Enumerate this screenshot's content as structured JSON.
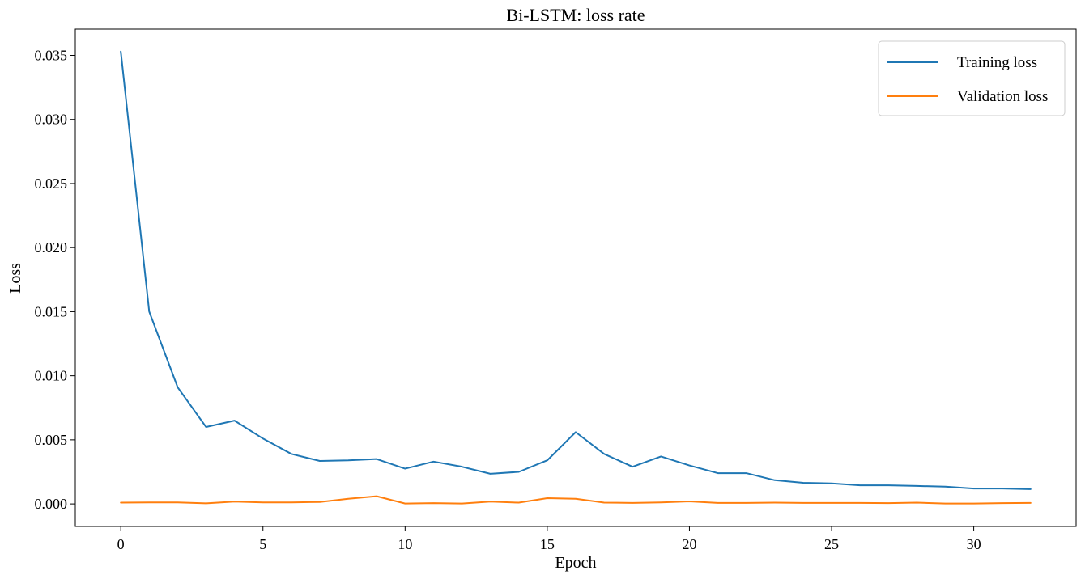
{
  "chart_data": {
    "type": "line",
    "title": "Bi-LSTM: loss rate",
    "xlabel": "Epoch",
    "ylabel": "Loss",
    "xlim": [
      -1.6,
      33.6
    ],
    "ylim": [
      -0.00176,
      0.03705
    ],
    "xticks": [
      0,
      5,
      10,
      15,
      20,
      25,
      30
    ],
    "xtick_labels": [
      "0",
      "5",
      "10",
      "15",
      "20",
      "25",
      "30"
    ],
    "yticks": [
      0.0,
      0.005,
      0.01,
      0.015,
      0.02,
      0.025,
      0.03,
      0.035
    ],
    "ytick_labels": [
      "0.000",
      "0.005",
      "0.010",
      "0.015",
      "0.020",
      "0.025",
      "0.030",
      "0.035"
    ],
    "grid": false,
    "legend_position": "top-right",
    "x": [
      0,
      1,
      2,
      3,
      4,
      5,
      6,
      7,
      8,
      9,
      10,
      11,
      12,
      13,
      14,
      15,
      16,
      17,
      18,
      19,
      20,
      21,
      22,
      23,
      24,
      25,
      26,
      27,
      28,
      29,
      30,
      31,
      32
    ],
    "series": [
      {
        "name": "Training loss",
        "color": "#1f77b4",
        "values": [
          0.0353,
          0.015,
          0.0091,
          0.006,
          0.0065,
          0.0051,
          0.0039,
          0.00335,
          0.0034,
          0.0035,
          0.00275,
          0.0033,
          0.0029,
          0.00235,
          0.0025,
          0.0034,
          0.0056,
          0.0039,
          0.0029,
          0.0037,
          0.003,
          0.0024,
          0.0024,
          0.00185,
          0.00165,
          0.0016,
          0.00145,
          0.00145,
          0.0014,
          0.00135,
          0.0012,
          0.0012,
          0.00115
        ]
      },
      {
        "name": "Validation loss",
        "color": "#ff7f0e",
        "values": [
          0.0001,
          0.00012,
          0.00012,
          5e-05,
          0.00018,
          0.00012,
          0.00012,
          0.00015,
          0.0004,
          0.0006,
          3e-05,
          6e-05,
          3e-05,
          0.00018,
          0.0001,
          0.00045,
          0.0004,
          0.0001,
          8e-05,
          0.00012,
          0.0002,
          8e-05,
          8e-05,
          0.0001,
          8e-05,
          8e-05,
          8e-05,
          6e-05,
          0.0001,
          3e-05,
          3e-05,
          6e-05,
          8e-05
        ]
      }
    ]
  }
}
